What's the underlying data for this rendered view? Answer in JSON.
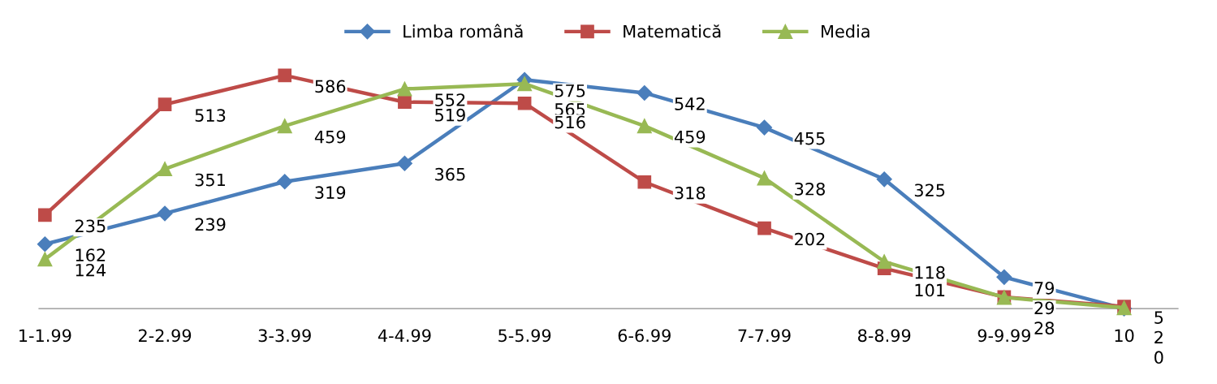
{
  "chart_data": {
    "type": "line",
    "categories": [
      "1-1.99",
      "2-2.99",
      "3-3.99",
      "4-4.99",
      "5-5.99",
      "6-6.99",
      "7-7.99",
      "8-8.99",
      "9-9.99",
      "10"
    ],
    "series": [
      {
        "name": "Limba română",
        "color": "#4a7ebb",
        "marker": "diamond",
        "values": [
          162,
          239,
          319,
          365,
          575,
          542,
          455,
          325,
          79,
          0
        ]
      },
      {
        "name": "Matematică",
        "color": "#be4b48",
        "marker": "square",
        "values": [
          235,
          513,
          586,
          519,
          516,
          318,
          202,
          101,
          29,
          5
        ]
      },
      {
        "name": "Media",
        "color": "#98b954",
        "marker": "triangle",
        "values": [
          124,
          351,
          459,
          552,
          565,
          459,
          328,
          118,
          28,
          2
        ]
      }
    ],
    "data_labels": true,
    "legend": "top",
    "grid": false,
    "tick_labels": "x"
  }
}
